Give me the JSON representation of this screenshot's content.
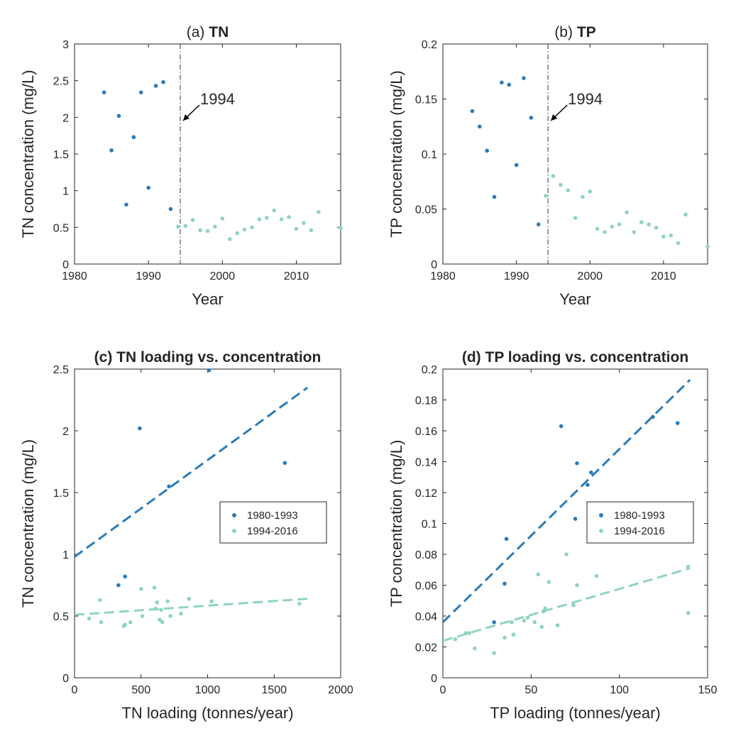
{
  "colors": {
    "series1": "#2b7bba",
    "series2": "#8fd4c1",
    "axis": "#262626",
    "vline": "#555555"
  },
  "chart_data": [
    {
      "id": "a",
      "type": "scatter",
      "title_tag": "(a)",
      "title": "TN",
      "xlabel": "Year",
      "ylabel": "TN concentration (mg/L)",
      "xlim": [
        1980,
        2016
      ],
      "ylim": [
        0,
        3
      ],
      "xticks": [
        1980,
        1990,
        2000,
        2010
      ],
      "yticks": [
        0,
        0.5,
        1,
        1.5,
        2,
        2.5,
        3
      ],
      "vline": {
        "x": 1994.3,
        "label": "1994"
      },
      "series": [
        {
          "name": "1980-1993",
          "color": "#2b7bba",
          "x": [
            1984,
            1985,
            1986,
            1987,
            1988,
            1989,
            1990,
            1991,
            1992,
            1993
          ],
          "y": [
            2.34,
            1.55,
            2.02,
            0.81,
            1.73,
            2.34,
            1.04,
            2.43,
            2.48,
            0.75
          ]
        },
        {
          "name": "1994-2016",
          "color": "#8fd4c1",
          "x": [
            1994,
            1995,
            1996,
            1997,
            1998,
            1999,
            2000,
            2001,
            2002,
            2003,
            2004,
            2005,
            2006,
            2007,
            2008,
            2009,
            2010,
            2011,
            2012,
            2013,
            2016
          ],
          "y": [
            0.51,
            0.52,
            0.6,
            0.46,
            0.45,
            0.51,
            0.62,
            0.34,
            0.42,
            0.47,
            0.5,
            0.61,
            0.63,
            0.73,
            0.61,
            0.64,
            0.48,
            0.56,
            0.46,
            0.71,
            0.49
          ]
        }
      ]
    },
    {
      "id": "b",
      "type": "scatter",
      "title_tag": "(b)",
      "title": "TP",
      "xlabel": "Year",
      "ylabel": "TP concentration (mg/L)",
      "xlim": [
        1980,
        2016
      ],
      "ylim": [
        0,
        0.2
      ],
      "xticks": [
        1980,
        1990,
        2000,
        2010
      ],
      "yticks": [
        0,
        0.05,
        0.1,
        0.15,
        0.2
      ],
      "vline": {
        "x": 1994.3,
        "label": "1994"
      },
      "series": [
        {
          "name": "1980-1993",
          "color": "#2b7bba",
          "x": [
            1984,
            1985,
            1986,
            1987,
            1988,
            1989,
            1990,
            1991,
            1992,
            1993
          ],
          "y": [
            0.139,
            0.125,
            0.103,
            0.061,
            0.165,
            0.163,
            0.09,
            0.169,
            0.133,
            0.036
          ]
        },
        {
          "name": "1994-2016",
          "color": "#8fd4c1",
          "x": [
            1994,
            1995,
            1996,
            1997,
            1998,
            1999,
            2000,
            2001,
            2002,
            2003,
            2004,
            2005,
            2006,
            2007,
            2008,
            2009,
            2010,
            2011,
            2012,
            2013,
            2016
          ],
          "y": [
            0.062,
            0.08,
            0.072,
            0.067,
            0.042,
            0.061,
            0.066,
            0.032,
            0.029,
            0.034,
            0.036,
            0.047,
            0.029,
            0.038,
            0.036,
            0.033,
            0.025,
            0.026,
            0.019,
            0.045,
            0.016
          ]
        }
      ]
    },
    {
      "id": "c",
      "type": "scatter",
      "title_tag": "",
      "title": "(c) TN loading vs. concentration",
      "xlabel": "TN loading (tonnes/year)",
      "ylabel": "TN concentration (mg/L)",
      "xlim": [
        0,
        2000
      ],
      "ylim": [
        0,
        2.5
      ],
      "xticks": [
        0,
        500,
        1000,
        1500,
        2000
      ],
      "yticks": [
        0,
        0.5,
        1,
        1.5,
        2,
        2.5
      ],
      "legend": {
        "position": "right",
        "entries": [
          "1980-1993",
          "1994-2016"
        ]
      },
      "series": [
        {
          "name": "1980-1993",
          "color": "#2b7bba",
          "x": [
            330,
            380,
            490,
            710,
            1010,
            1580
          ],
          "y": [
            0.75,
            0.82,
            2.02,
            1.55,
            2.49,
            1.74
          ],
          "fit": {
            "x": [
              0,
              1750
            ],
            "y": [
              0.98,
              2.35
            ]
          }
        },
        {
          "name": "1994-2016",
          "color": "#8fd4c1",
          "x": [
            110,
            190,
            200,
            370,
            380,
            420,
            500,
            510,
            600,
            610,
            620,
            640,
            650,
            660,
            700,
            720,
            800,
            860,
            1030,
            1690
          ],
          "y": [
            0.48,
            0.63,
            0.45,
            0.42,
            0.43,
            0.45,
            0.72,
            0.5,
            0.73,
            0.56,
            0.61,
            0.47,
            0.55,
            0.45,
            0.62,
            0.5,
            0.52,
            0.64,
            0.62,
            0.6
          ],
          "fit": {
            "x": [
              0,
              1750
            ],
            "y": [
              0.51,
              0.64
            ]
          }
        }
      ]
    },
    {
      "id": "d",
      "type": "scatter",
      "title_tag": "",
      "title": "(d) TP loading vs. concentration",
      "xlabel": "TP loading (tonnes/year)",
      "ylabel": "TP concentration (mg/L)",
      "xlim": [
        0,
        150
      ],
      "ylim": [
        0,
        0.2
      ],
      "xticks": [
        0,
        50,
        100,
        150
      ],
      "yticks": [
        0,
        0.02,
        0.04,
        0.06,
        0.08,
        0.1,
        0.12,
        0.14,
        0.16,
        0.18,
        0.2
      ],
      "legend": {
        "position": "right",
        "entries": [
          "1980-1993",
          "1994-2016"
        ]
      },
      "series": [
        {
          "name": "1980-1993",
          "color": "#2b7bba",
          "x": [
            29,
            35,
            36,
            67,
            75,
            76,
            82,
            84,
            119,
            133
          ],
          "y": [
            0.036,
            0.061,
            0.09,
            0.163,
            0.103,
            0.139,
            0.125,
            0.133,
            0.169,
            0.165
          ],
          "fit": {
            "x": [
              0,
              140
            ],
            "y": [
              0.036,
              0.193
            ]
          }
        },
        {
          "name": "1994-2016",
          "color": "#8fd4c1",
          "x": [
            7,
            13,
            15,
            18,
            29,
            35,
            39,
            40,
            46,
            48,
            52,
            54,
            56,
            57,
            58,
            60,
            65,
            70,
            74,
            76,
            87,
            139,
            139
          ],
          "y": [
            0.025,
            0.029,
            0.029,
            0.019,
            0.016,
            0.026,
            0.036,
            0.028,
            0.037,
            0.039,
            0.036,
            0.067,
            0.033,
            0.043,
            0.045,
            0.062,
            0.034,
            0.08,
            0.047,
            0.06,
            0.066,
            0.072,
            0.042
          ],
          "fit": {
            "x": [
              0,
              140
            ],
            "y": [
              0.024,
              0.071
            ]
          }
        }
      ]
    }
  ]
}
